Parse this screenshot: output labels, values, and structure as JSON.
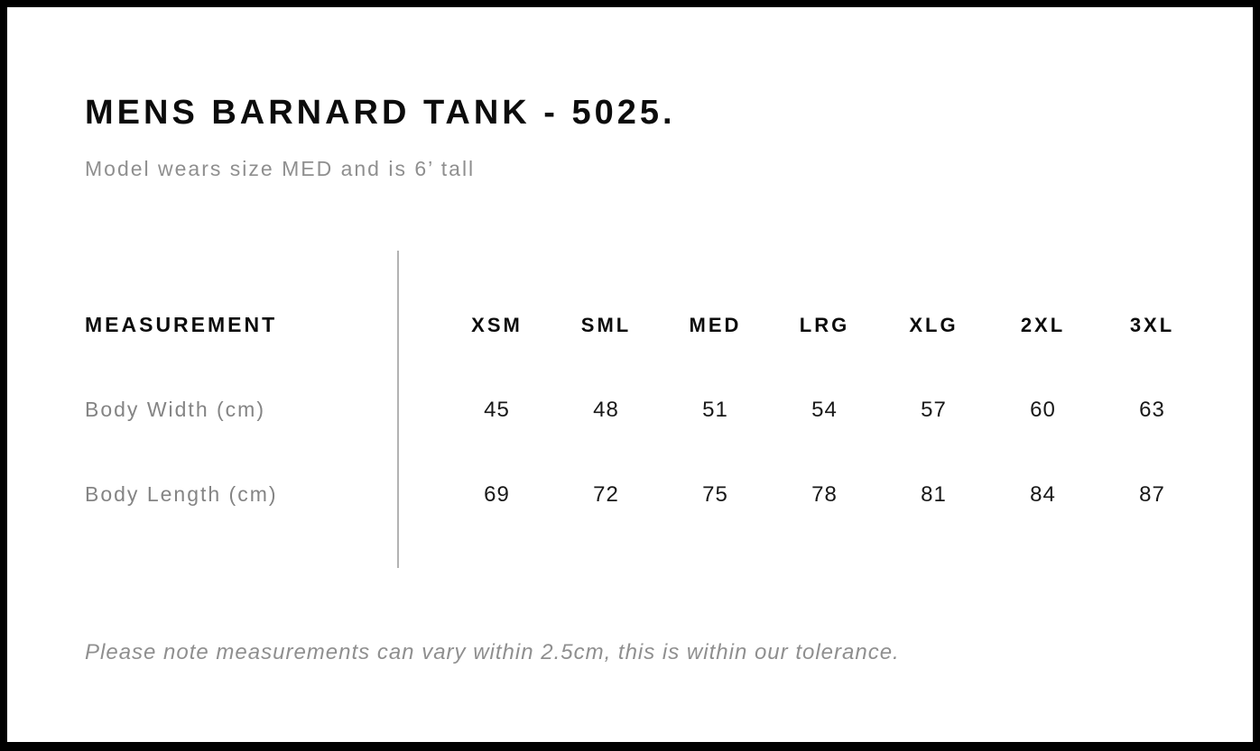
{
  "page": {
    "title": "MENS BARNARD TANK - 5025.",
    "subtitle": "Model wears size MED and is 6’ tall",
    "footnote": "Please note measurements can vary within 2.5cm, this is within our tolerance."
  },
  "chart_data": {
    "type": "table",
    "measurement_header": "MEASUREMENT",
    "columns": [
      "XSM",
      "SML",
      "MED",
      "LRG",
      "XLG",
      "2XL",
      "3XL"
    ],
    "rows": [
      {
        "label": "Body Width (cm)",
        "values": [
          "45",
          "48",
          "51",
          "54",
          "57",
          "60",
          "63"
        ]
      },
      {
        "label": "Body Length (cm)",
        "values": [
          "69",
          "72",
          "75",
          "78",
          "81",
          "84",
          "87"
        ]
      }
    ]
  },
  "colors": {
    "page_border": "#000000",
    "text_black": "#0c0c0c",
    "text_gray": "#8f8f8f",
    "label_gray": "#848484",
    "divider_gray": "#b3b3b3",
    "background": "#ffffff"
  }
}
